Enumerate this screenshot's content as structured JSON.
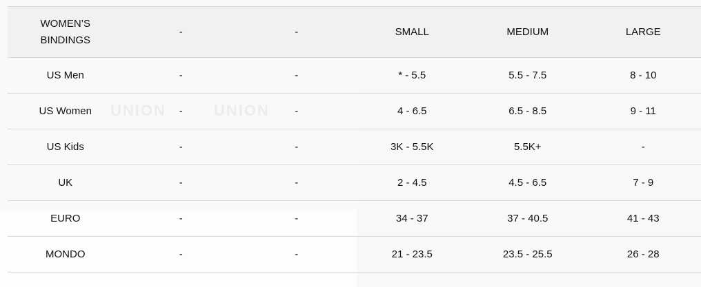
{
  "header": [
    "WOMEN’S BINDINGS",
    "-",
    "-",
    "SMALL",
    "MEDIUM",
    "LARGE"
  ],
  "rows": [
    [
      "US Men",
      "-",
      "-",
      "* - 5.5",
      "5.5 - 7.5",
      "8 - 10"
    ],
    [
      "US Women",
      "-",
      "-",
      "4 - 6.5",
      "6.5 - 8.5",
      "9 - 11"
    ],
    [
      "US Kids",
      "-",
      "-",
      "3K - 5.5K",
      "5.5K+",
      "-"
    ],
    [
      "UK",
      "-",
      "-",
      "2 - 4.5",
      "4.5 - 6.5",
      "7 - 9"
    ],
    [
      "EURO",
      "-",
      "-",
      "34 - 37",
      "37 - 40.5",
      "41 - 43"
    ],
    [
      "MONDO",
      "-",
      "-",
      "21 - 23.5",
      "23.5 - 25.5",
      "26 - 28"
    ]
  ],
  "watermark": "UNION"
}
